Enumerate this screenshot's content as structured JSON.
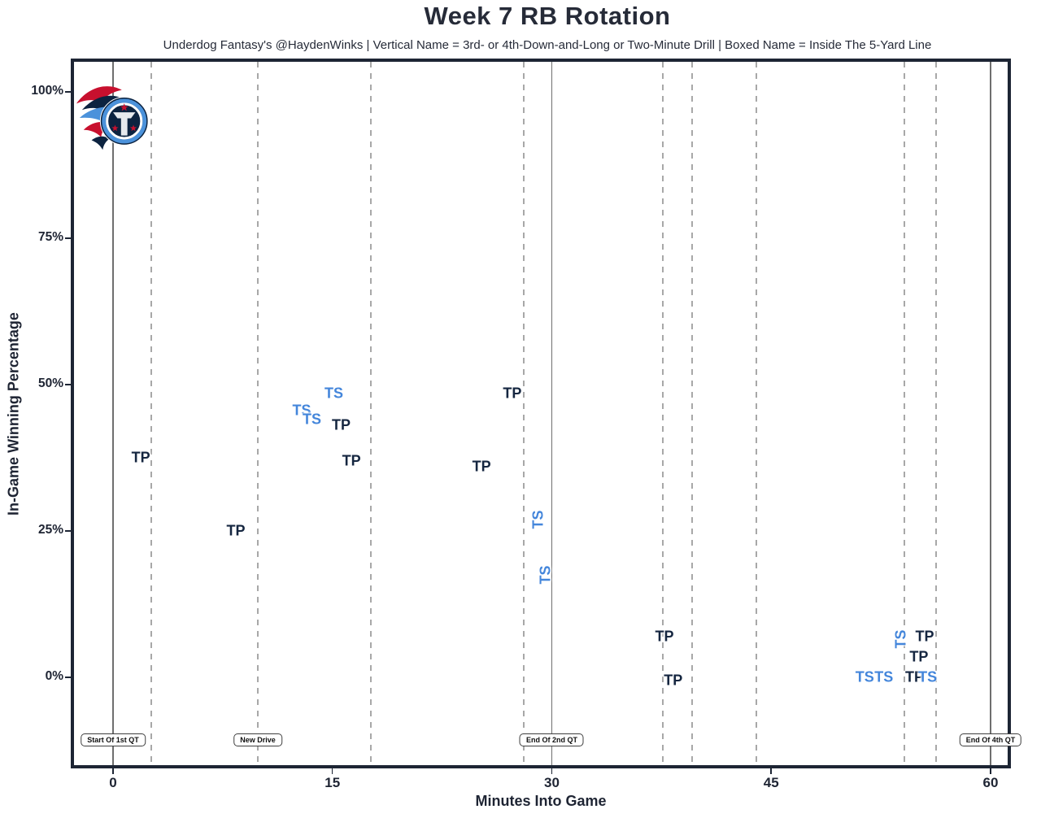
{
  "header": {
    "title": "Week 7 RB Rotation",
    "subtitle": "Underdog Fantasy's @HaydenWinks | Vertical Name = 3rd- or 4th-Down-and-Long or Two-Minute Drill | Boxed Name = Inside The 5-Yard Line"
  },
  "colors": {
    "tp": "#152640",
    "ts": "#4486db",
    "plot_border": "#1d2534",
    "solid_line": "#6f6f6f",
    "dashed_line": "#a8a8a8",
    "titans_navy": "#0c2340",
    "titans_blue": "#4b92db",
    "titans_red": "#c8102e"
  },
  "chart_data": {
    "type": "scatter",
    "title": "Week 7 RB Rotation",
    "subtitle": "Underdog Fantasy's @HaydenWinks | Vertical Name = 3rd- or 4th-Down-and-Long or Two-Minute Drill | Boxed Name = Inside The 5-Yard Line",
    "xlabel": "Minutes Into Game",
    "ylabel": "In-Game Winning Percentage",
    "xlim": [
      -2.7,
      61.2
    ],
    "ylim": [
      -15,
      105
    ],
    "grid": "vertical-only",
    "x_ticks": [
      {
        "value": 0,
        "label": "0"
      },
      {
        "value": 15,
        "label": "15"
      },
      {
        "value": 30,
        "label": "30"
      },
      {
        "value": 45,
        "label": "45"
      },
      {
        "value": 60,
        "label": "60"
      }
    ],
    "y_ticks": [
      {
        "value": 0,
        "label": "0%"
      },
      {
        "value": 25,
        "label": "25%"
      },
      {
        "value": 50,
        "label": "50%"
      },
      {
        "value": 75,
        "label": "75%"
      },
      {
        "value": 100,
        "label": "100%"
      }
    ],
    "solid_vlines": [
      0,
      30,
      60
    ],
    "dashed_vlines": [
      2.6,
      9.9,
      17.6,
      28.1,
      37.6,
      39.6,
      44.0,
      54.1,
      56.3
    ],
    "quarter_markers": [
      {
        "x": 0,
        "label": "Start Of 1st QT"
      },
      {
        "x": 9.9,
        "label": "New Drive"
      },
      {
        "x": 30,
        "label": "End Of 2nd QT"
      },
      {
        "x": 60,
        "label": "End Of 4th QT"
      }
    ],
    "series": [
      {
        "name": "TP",
        "color": "#152640",
        "points": [
          {
            "x": 1.9,
            "y": 37.5
          },
          {
            "x": 8.4,
            "y": 25
          },
          {
            "x": 15.6,
            "y": 43
          },
          {
            "x": 16.3,
            "y": 37
          },
          {
            "x": 25.2,
            "y": 36
          },
          {
            "x": 27.3,
            "y": 48.5
          },
          {
            "x": 37.7,
            "y": 7
          },
          {
            "x": 38.3,
            "y": -0.5
          },
          {
            "x": 54.8,
            "y": 0
          },
          {
            "x": 55.1,
            "y": 3.5
          },
          {
            "x": 55.5,
            "y": 7
          }
        ]
      },
      {
        "name": "TS",
        "color": "#4486db",
        "points": [
          {
            "x": 12.9,
            "y": 45.5
          },
          {
            "x": 13.6,
            "y": 44
          },
          {
            "x": 15.1,
            "y": 48.5
          },
          {
            "x": 29.1,
            "y": 27,
            "vertical": true
          },
          {
            "x": 29.6,
            "y": 17.5,
            "vertical": true
          },
          {
            "x": 51.4,
            "y": 0
          },
          {
            "x": 52.7,
            "y": 0
          },
          {
            "x": 53.9,
            "y": 6.5,
            "vertical": true
          },
          {
            "x": 55.7,
            "y": 0
          }
        ]
      }
    ],
    "team_logo": "tennessee-titans"
  }
}
